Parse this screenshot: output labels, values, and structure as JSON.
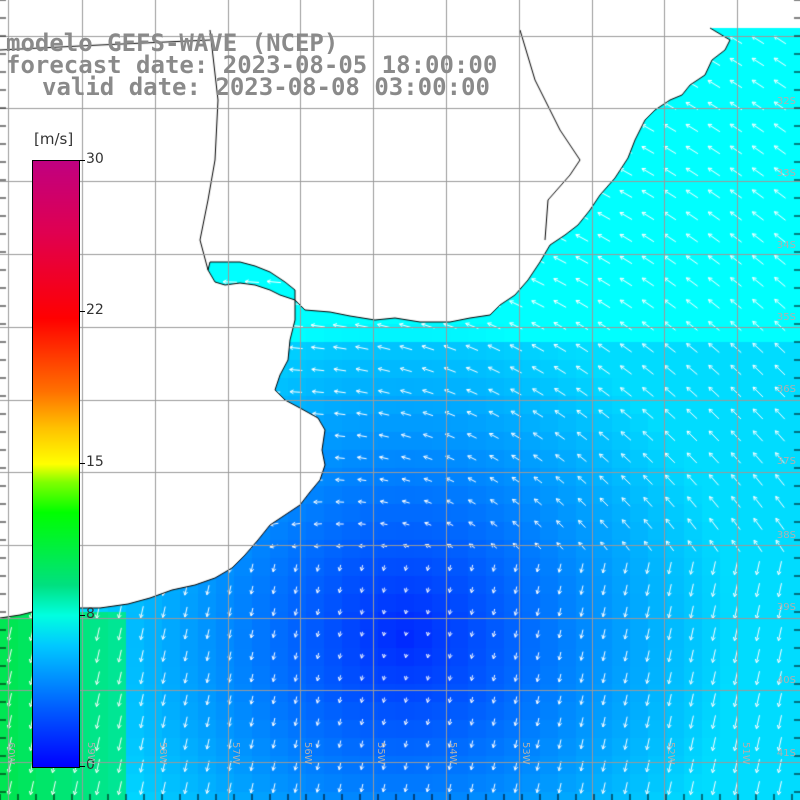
{
  "title": {
    "line1": "modelo GEFS-WAVE (NCEP)",
    "line2": "forecast date: 2023-08-05 18:00:00",
    "line3": "valid date: 2023-08-08 03:00:00"
  },
  "colorbar": {
    "unit": "[m/s]",
    "min": 0,
    "max": 30,
    "ticks": [
      "30",
      "22",
      "15",
      "8",
      "0"
    ]
  },
  "lat_labels": [
    "32S",
    "33S",
    "34S",
    "35S",
    "36S",
    "37S",
    "38S",
    "39S",
    "40S",
    "41S"
  ],
  "lon_labels": [
    "60W",
    "59W",
    "58W",
    "57W",
    "56W",
    "55W",
    "54W",
    "53W",
    "52W",
    "51W"
  ],
  "colors": {
    "land": "#ffffff",
    "coast": "#000000",
    "grid": "#9a9a9a",
    "arrows": "#ffffff"
  }
}
